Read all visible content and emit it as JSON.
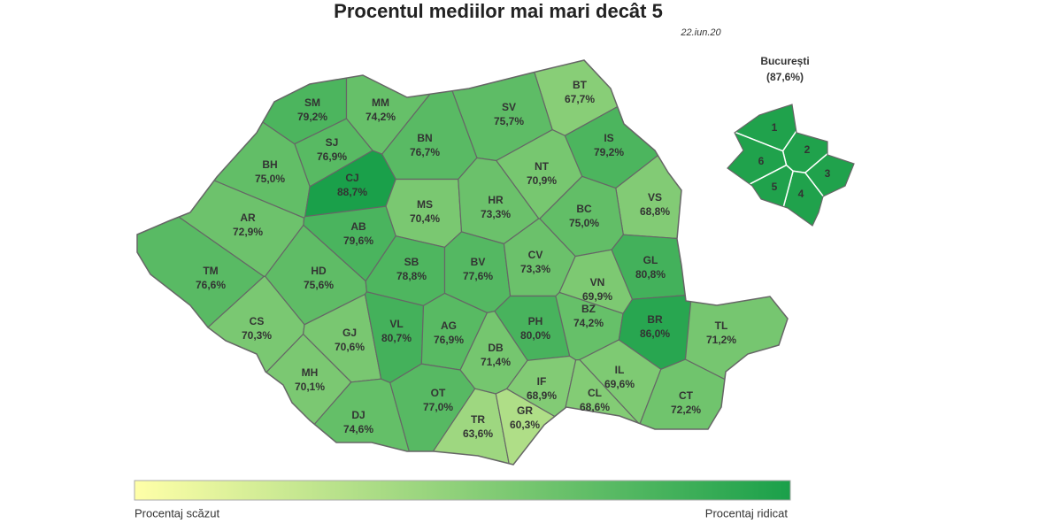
{
  "chart_data": {
    "type": "choropleth",
    "title": "Procentul mediilor mai mari decât 5",
    "subtitle": "22.iun.20",
    "categories": [
      "SM",
      "MM",
      "BT",
      "SV",
      "BN",
      "SJ",
      "IS",
      "BH",
      "CJ",
      "NT",
      "VS",
      "MS",
      "HR",
      "AR",
      "AB",
      "BC",
      "TM",
      "HD",
      "SB",
      "BV",
      "CV",
      "VN",
      "GL",
      "CS",
      "GJ",
      "VL",
      "AG",
      "PH",
      "BZ",
      "BR",
      "TL",
      "MH",
      "DJ",
      "OT",
      "DB",
      "TR",
      "GR",
      "IF",
      "IL",
      "CL",
      "CT"
    ],
    "values": [
      79.2,
      74.2,
      67.7,
      75.7,
      76.7,
      76.9,
      79.2,
      75.0,
      88.7,
      70.9,
      68.8,
      70.4,
      73.3,
      72.9,
      79.6,
      75.0,
      76.6,
      75.6,
      78.8,
      77.6,
      73.3,
      69.9,
      80.8,
      70.3,
      70.6,
      80.7,
      76.9,
      80.0,
      74.2,
      86.0,
      71.2,
      70.1,
      74.6,
      77.0,
      71.4,
      63.6,
      60.3,
      68.9,
      69.6,
      68.6,
      72.2
    ],
    "value_labels": [
      "79,2%",
      "74,2%",
      "67,7%",
      "75,7%",
      "76,7%",
      "76,9%",
      "79,2%",
      "75,0%",
      "88,7%",
      "70,9%",
      "68,8%",
      "70,4%",
      "73,3%",
      "72,9%",
      "79,6%",
      "75,0%",
      "76,6%",
      "75,6%",
      "78,8%",
      "77,6%",
      "73,3%",
      "69,9%",
      "80,8%",
      "70,3%",
      "70,6%",
      "80,7%",
      "76,9%",
      "80,0%",
      "74,2%",
      "86,0%",
      "71,2%",
      "70,1%",
      "74,6%",
      "77,0%",
      "71,4%",
      "63,6%",
      "60,3%",
      "68,9%",
      "69,6%",
      "68,6%",
      "72,2%"
    ],
    "inset": {
      "name": "București",
      "value": 87.6,
      "value_label": "(87,6%)",
      "sectors": [
        "1",
        "2",
        "3",
        "4",
        "5",
        "6"
      ]
    },
    "legend": {
      "low_label": "Procentaj scăzut",
      "high_label": "Procentaj ridicat",
      "colors": [
        "#ffffa8",
        "#1aa04a"
      ]
    }
  }
}
